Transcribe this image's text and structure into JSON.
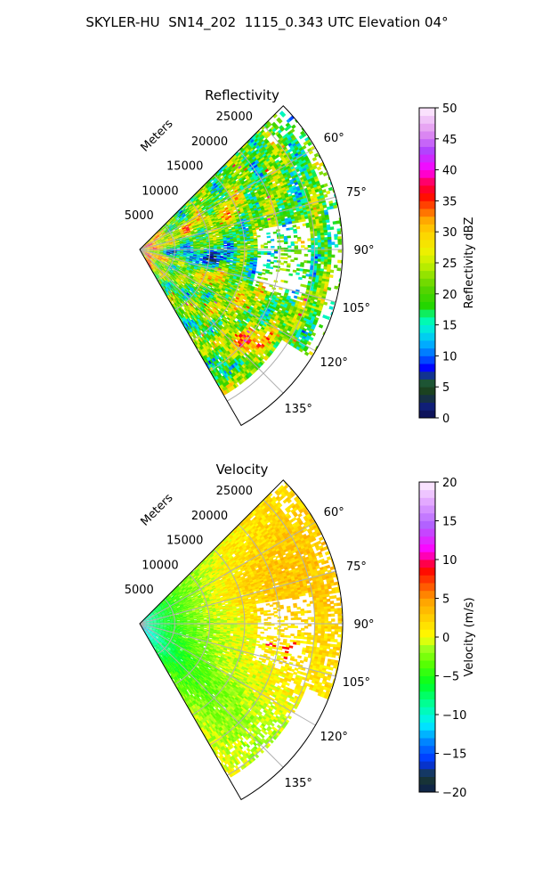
{
  "title": "SKYLER-HU  SN14_202  1115_0.343 UTC Elevation 04°",
  "chart_data": [
    {
      "type": "heatmap",
      "title": "Reflectivity",
      "projection": "polar sector",
      "radial_label": "Meters",
      "radial_ticks": [
        5000,
        10000,
        15000,
        20000,
        25000
      ],
      "radial_tick_labels": [
        "5000",
        "10000",
        "15000",
        "20000",
        "25000"
      ],
      "azimuth_range": [
        45,
        150
      ],
      "azimuth_ticks": [
        60,
        75,
        90,
        105,
        120,
        135
      ],
      "azimuth_tick_labels": [
        "60°",
        "75°",
        "90°",
        "105°",
        "120°",
        "135°"
      ],
      "max_range": 29000,
      "grid": true,
      "colorbar": {
        "label": "Reflectivity dBZ",
        "range": [
          0,
          50
        ],
        "ticks": [
          0,
          5,
          10,
          15,
          20,
          25,
          30,
          35,
          40,
          45,
          50
        ],
        "tick_labels": [
          "0",
          "5",
          "10",
          "15",
          "20",
          "25",
          "30",
          "35",
          "40",
          "45",
          "50"
        ],
        "colormap": "pyart_NWSRef"
      },
      "field_summary": "Mostly 18-28 dBZ; strong bands 30-38 dBZ near origin and along 65° and 130° azimuth; weaker 12-16 dBZ core near 95° between 4000-12000 m; data gaps near 85-105° beyond 18000 m"
    },
    {
      "type": "heatmap",
      "title": "Velocity",
      "projection": "polar sector",
      "radial_label": "Meters",
      "radial_ticks": [
        5000,
        10000,
        15000,
        20000,
        25000
      ],
      "radial_tick_labels": [
        "5000",
        "10000",
        "15000",
        "20000",
        "25000"
      ],
      "azimuth_range": [
        45,
        150
      ],
      "azimuth_ticks": [
        60,
        75,
        90,
        105,
        120,
        135
      ],
      "azimuth_tick_labels": [
        "60°",
        "75°",
        "90°",
        "105°",
        "120°",
        "135°"
      ],
      "max_range": 29000,
      "grid": true,
      "colorbar": {
        "label": "Velocity (m/s)",
        "range": [
          -20,
          20
        ],
        "ticks": [
          -20,
          -15,
          -10,
          -5,
          0,
          5,
          10,
          15,
          20
        ],
        "tick_labels": [
          "−20",
          "−15",
          "−10",
          "−5",
          "0",
          "5",
          "10",
          "15",
          "20"
        ],
        "colormap": "pyart_BuDRd18"
      },
      "field_summary": "About -10 m/s near radar, increasing to -4 m/s by 8000 m and 0 to +2 m/s beyond 15000 m, with isolated +5 to +10 m/s gates near 100° at 20000 m; southern sector (120-150°) stays -3 to -6 m/s"
    }
  ]
}
